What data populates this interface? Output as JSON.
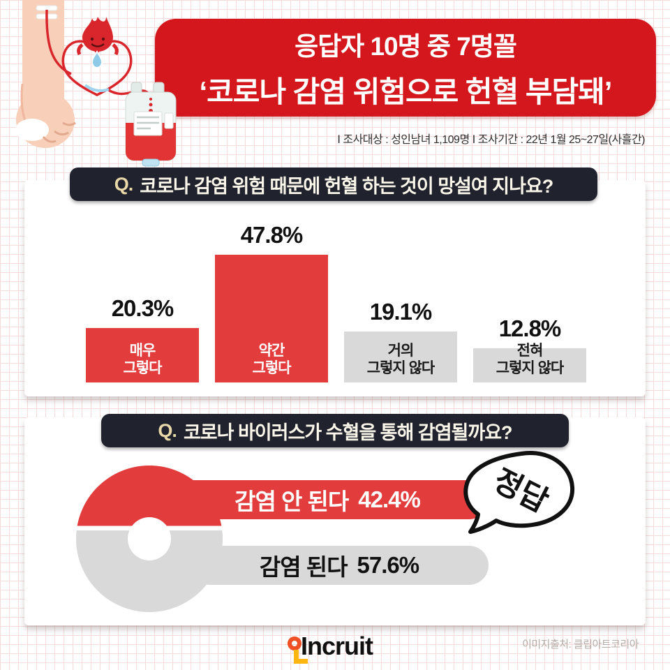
{
  "q_prefix": "Q.",
  "header": {
    "title_line1": "응답자 10명 중 7명꼴",
    "title_line2": "‘코로나 감염 위험으로 헌혈 부담돼’",
    "banner_color": "#d3171d",
    "survey_meta": "Ⅰ 조사대상 : 성인남녀 1,109명 Ⅰ 조사기간 : 22년 1월 25~27일(사흘간)"
  },
  "chart_data": [
    {
      "type": "bar",
      "title": "코로나 감염 위험 때문에 헌혈 하는 것이 망설여 지나요?",
      "categories": [
        "매우\n그렇다",
        "약간\n그렇다",
        "거의\n그렇지 않다",
        "전혀\n그렇지 않다"
      ],
      "values": [
        20.3,
        47.8,
        19.1,
        12.8
      ],
      "value_labels": [
        "20.3%",
        "47.8%",
        "19.1%",
        "12.8%"
      ],
      "bar_colors": [
        "#e23c3c",
        "#e23c3c",
        "#d9d9d9",
        "#d9d9d9"
      ],
      "label_colors": [
        "#ffffff",
        "#ffffff",
        "#1a1a1a",
        "#1a1a1a"
      ],
      "ylim": [
        0,
        50
      ],
      "grid": false,
      "legend": "none"
    },
    {
      "type": "pie",
      "title": "코로나 바이러스가 수혈을 통해 감염될까요?",
      "labels": [
        "감염 안 된다",
        "감염 된다"
      ],
      "values": [
        42.4,
        57.6
      ],
      "value_labels": [
        "42.4%",
        "57.6%"
      ],
      "colors": [
        "#e23c3c",
        "#d9d9d9"
      ],
      "annotation": "정답",
      "legend": "none"
    }
  ],
  "footer": {
    "logo_text": "Incruit",
    "credit": "이미지출처: 클립아트코리아"
  },
  "theme": {
    "header_bar_bg": "#20222d",
    "q_prefix_color": "#ead9a8",
    "logo_orange": "#f04e23",
    "logo_yellow": "#ffb612",
    "grid_line_color": "#f7dada"
  }
}
